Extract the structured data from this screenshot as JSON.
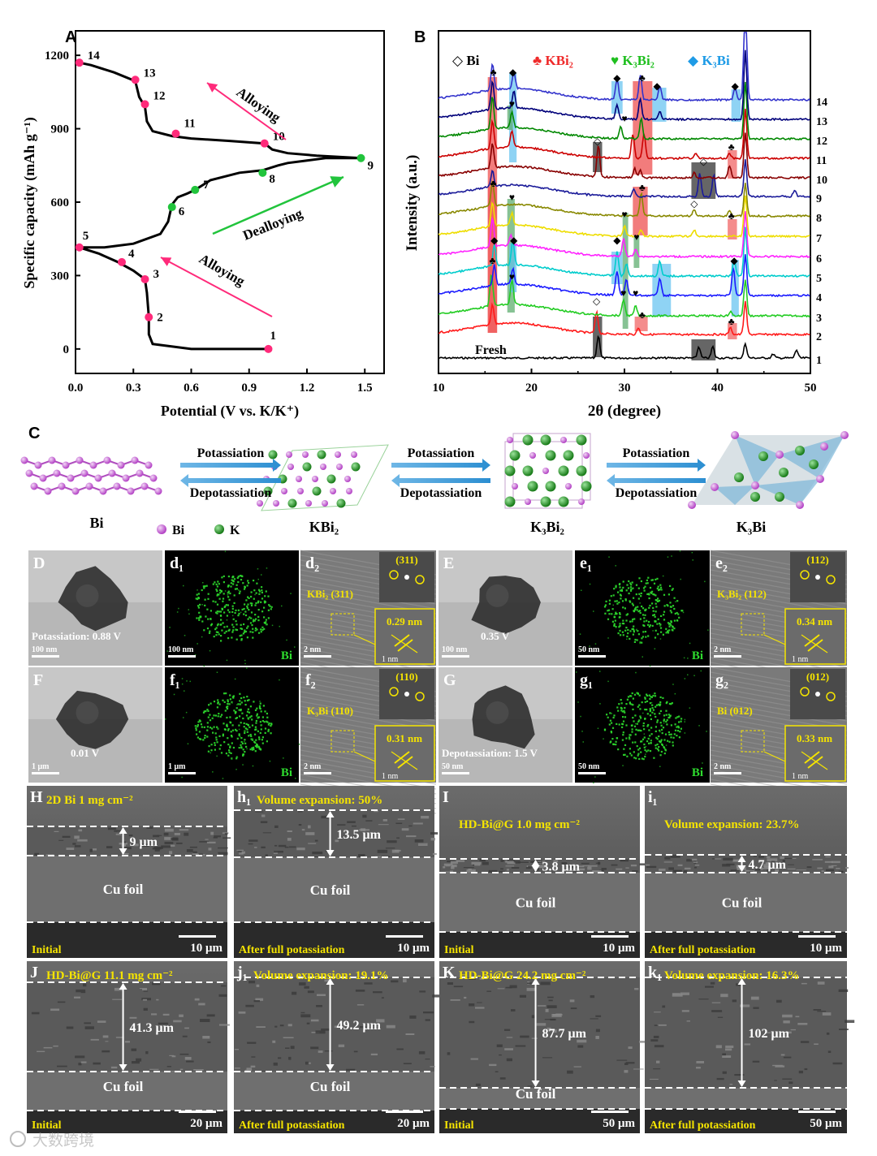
{
  "panels": {
    "A": {
      "letter": "A",
      "ylabel": "Specific capacity (mAh g⁻¹)",
      "xlabel": "Potential (V vs. K/K⁺)",
      "xticks": [
        "0.0",
        "0.3",
        "0.6",
        "0.9",
        "1.2",
        "1.5"
      ],
      "yticks": [
        "0",
        "300",
        "600",
        "900",
        "1200"
      ],
      "annotations": [
        "Alloying",
        "Dealloying",
        "Alloying"
      ]
    },
    "B": {
      "letter": "B",
      "ylabel": "Intensity (a.u.)",
      "xlabel": "2θ (degree)",
      "xticks": [
        "10",
        "20",
        "30",
        "40",
        "50"
      ],
      "legend": [
        "◇ Bi",
        "♣ KBi₂",
        "♥ K₃Bi₂",
        "◆ K₃Bi"
      ],
      "fresh_label": "Fresh",
      "curve_labels": [
        "1",
        "2",
        "3",
        "4",
        "5",
        "6",
        "7",
        "8",
        "9",
        "10",
        "11",
        "12",
        "13",
        "14"
      ]
    },
    "C": {
      "letter": "C",
      "arrow_top": "Potassiation",
      "arrow_bottom": "Depotassiation",
      "phases": [
        "Bi",
        "KBi₂",
        "K₃Bi₂",
        "K₃Bi"
      ],
      "atom_legend": [
        "Bi",
        "K"
      ]
    },
    "tem": [
      {
        "label": "D",
        "caption": "Potassiation: 0.88 V",
        "scale": "100 nm"
      },
      {
        "label": "d₁",
        "element": "Bi",
        "scale": "100 nm"
      },
      {
        "label": "d₂",
        "phase": "KBi₂ (311)",
        "fft": "(311)",
        "spacing": "0.29 nm",
        "scale": "2 nm",
        "inset_scale": "1 nm"
      },
      {
        "label": "E",
        "caption": "0.35 V",
        "scale": "100 nm"
      },
      {
        "label": "e₁",
        "element": "Bi",
        "scale": "50 nm"
      },
      {
        "label": "e₂",
        "phase": "K₃Bi₂ (112)",
        "fft": "(112)",
        "spacing": "0.34 nm",
        "scale": "2 nm",
        "inset_scale": "1 nm"
      },
      {
        "label": "F",
        "caption": "0.01 V",
        "scale": "1 μm"
      },
      {
        "label": "f₁",
        "element": "Bi",
        "scale": "1 μm"
      },
      {
        "label": "f₂",
        "phase": "K₃Bi (110)",
        "fft": "(110)",
        "spacing": "0.31 nm",
        "scale": "2 nm",
        "inset_scale": "1 nm"
      },
      {
        "label": "G",
        "caption": "Depotassiation: 1.5 V",
        "scale": "50 nm"
      },
      {
        "label": "g₁",
        "element": "Bi",
        "scale": "50 nm"
      },
      {
        "label": "g₂",
        "phase": "Bi (012)",
        "fft": "(012)",
        "spacing": "0.33 nm",
        "scale": "2 nm",
        "inset_scale": "1 nm"
      }
    ],
    "sem": [
      {
        "label": "H",
        "title": "2D Bi  1 mg cm⁻²",
        "thickness": "9 μm",
        "foil": "Cu foil",
        "bottom": "Initial",
        "scale": "10 μm"
      },
      {
        "label": "h₁",
        "title": "Volume expansion: 50%",
        "thickness": "13.5 μm",
        "foil": "Cu foil",
        "bottom": "After full potassiation",
        "scale": "10 μm"
      },
      {
        "label": "I",
        "title": "HD-Bi@G  1.0 mg cm⁻²",
        "thickness": "3.8 μm",
        "foil": "Cu foil",
        "bottom": "Initial",
        "scale": "10 μm"
      },
      {
        "label": "i₁",
        "title": "Volume expansion: 23.7%",
        "thickness": "4.7 μm",
        "foil": "Cu foil",
        "bottom": "After full potassiation",
        "scale": "10 μm"
      },
      {
        "label": "J",
        "title": "HD-Bi@G 11.1 mg cm⁻²",
        "thickness": "41.3 μm",
        "foil": "Cu foil",
        "bottom": "Initial",
        "scale": "20 μm"
      },
      {
        "label": "j₁",
        "title": "Volume expansion: 19.1%",
        "thickness": "49.2 μm",
        "foil": "Cu foil",
        "bottom": "After full potassiation",
        "scale": "20 μm"
      },
      {
        "label": "K",
        "title": "HD-Bi@G  24.2 mg cm⁻²",
        "thickness": "87.7 μm",
        "foil": "Cu foil",
        "bottom": "Initial",
        "scale": "50 μm"
      },
      {
        "label": "k₁",
        "title": "Volume expansion: 16.3%",
        "thickness": "102 μm",
        "foil": "",
        "bottom": "After full potassiation",
        "scale": "50 μm"
      }
    ],
    "watermark": "大数跨境"
  },
  "chart_data": [
    {
      "type": "line",
      "panel": "A",
      "xlabel": "Potential (V vs. K/K⁺)",
      "ylabel": "Specific capacity (mAh g⁻¹)",
      "xlim": [
        0.0,
        1.6
      ],
      "ylim": [
        -100,
        1300
      ],
      "curve": [
        [
          1.0,
          0
        ],
        [
          0.6,
          0
        ],
        [
          0.4,
          20
        ],
        [
          0.38,
          60
        ],
        [
          0.38,
          130
        ],
        [
          0.37,
          230
        ],
        [
          0.36,
          285
        ],
        [
          0.3,
          320
        ],
        [
          0.22,
          355
        ],
        [
          0.12,
          390
        ],
        [
          0.02,
          415
        ],
        [
          0.15,
          415
        ],
        [
          0.3,
          430
        ],
        [
          0.44,
          470
        ],
        [
          0.48,
          520
        ],
        [
          0.5,
          590
        ],
        [
          0.53,
          620
        ],
        [
          0.58,
          635
        ],
        [
          0.62,
          650
        ],
        [
          0.7,
          690
        ],
        [
          0.85,
          720
        ],
        [
          0.97,
          730
        ],
        [
          1.05,
          750
        ],
        [
          1.1,
          760
        ],
        [
          1.2,
          770
        ],
        [
          1.3,
          780
        ],
        [
          1.48,
          780
        ],
        [
          1.25,
          790
        ],
        [
          1.1,
          800
        ],
        [
          1.02,
          815
        ],
        [
          0.98,
          840
        ],
        [
          0.8,
          850
        ],
        [
          0.6,
          860
        ],
        [
          0.5,
          870
        ],
        [
          0.4,
          890
        ],
        [
          0.37,
          930
        ],
        [
          0.36,
          990
        ],
        [
          0.33,
          1030
        ],
        [
          0.31,
          1095
        ],
        [
          0.2,
          1130
        ],
        [
          0.08,
          1160
        ],
        [
          0.02,
          1170
        ]
      ],
      "points": [
        {
          "n": "1",
          "x": 1.0,
          "y": 0,
          "color": "#ff2a7a"
        },
        {
          "n": "2",
          "x": 0.38,
          "y": 130,
          "color": "#ff2a7a"
        },
        {
          "n": "3",
          "x": 0.36,
          "y": 285,
          "color": "#ff2a7a"
        },
        {
          "n": "4",
          "x": 0.24,
          "y": 355,
          "color": "#ff2a7a"
        },
        {
          "n": "5",
          "x": 0.02,
          "y": 415,
          "color": "#ff2a7a"
        },
        {
          "n": "6",
          "x": 0.5,
          "y": 580,
          "color": "#21c43c"
        },
        {
          "n": "7",
          "x": 0.62,
          "y": 650,
          "color": "#21c43c"
        },
        {
          "n": "8",
          "x": 0.97,
          "y": 720,
          "color": "#21c43c"
        },
        {
          "n": "9",
          "x": 1.48,
          "y": 780,
          "color": "#21c43c"
        },
        {
          "n": "10",
          "x": 0.98,
          "y": 840,
          "color": "#ff2a7a"
        },
        {
          "n": "11",
          "x": 0.52,
          "y": 880,
          "color": "#ff2a7a"
        },
        {
          "n": "12",
          "x": 0.36,
          "y": 1000,
          "color": "#ff2a7a"
        },
        {
          "n": "13",
          "x": 0.31,
          "y": 1100,
          "color": "#ff2a7a"
        },
        {
          "n": "14",
          "x": 0.02,
          "y": 1170,
          "color": "#ff2a7a"
        }
      ]
    },
    {
      "type": "line",
      "panel": "B",
      "xlabel": "2θ (degree)",
      "ylabel": "Intensity (a.u.)",
      "xlim": [
        10,
        50
      ],
      "series_colors": [
        "#000000",
        "#ff1a1a",
        "#22cc22",
        "#1a1aff",
        "#00cccc",
        "#ff22ff",
        "#eedd00",
        "#888800",
        "#1a1a99",
        "#880000",
        "#cc0000",
        "#008800",
        "#00007a",
        "#3333cc"
      ]
    }
  ],
  "colors": {
    "pink": "#ff2a7a",
    "green": "#21c43c",
    "kbi2": "#ef2b2b",
    "k3bi2": "#1fbf1f",
    "k3bi": "#1e9be6",
    "yellow": "#f5e400"
  }
}
